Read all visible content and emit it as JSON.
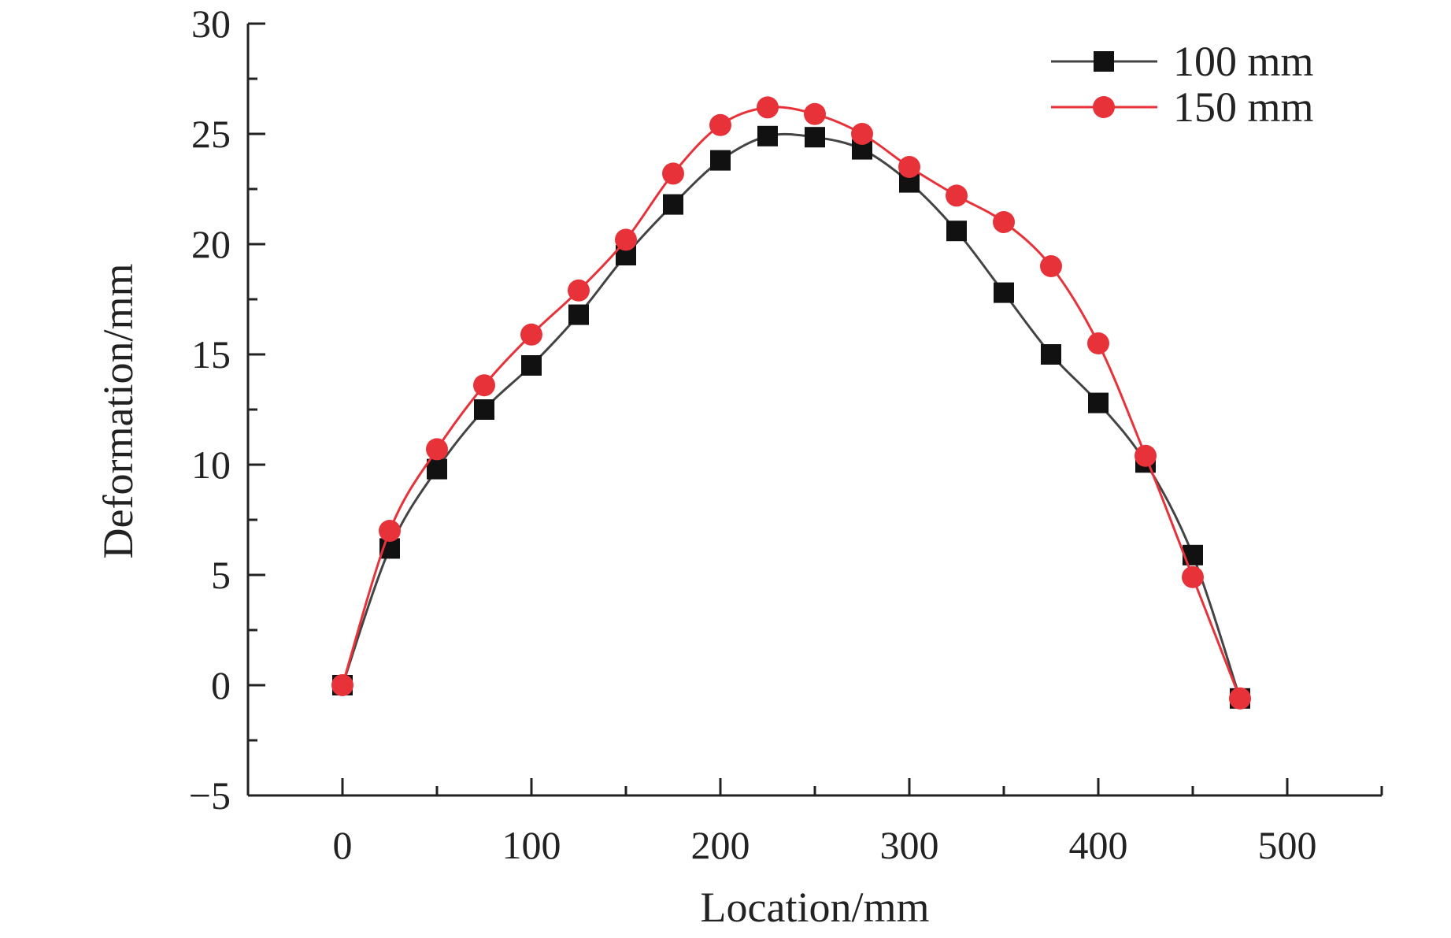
{
  "chart_data": {
    "type": "line",
    "title": "",
    "xlabel": "Location/mm",
    "ylabel": "Deformation/mm",
    "xlim": [
      -50,
      550
    ],
    "ylim": [
      -5,
      30
    ],
    "xticks": [
      0,
      100,
      200,
      300,
      400,
      500
    ],
    "yticks": [
      -5,
      0,
      5,
      10,
      15,
      20,
      25,
      30
    ],
    "xtick_labels": [
      "0",
      "100",
      "200",
      "300",
      "400",
      "500"
    ],
    "ytick_labels": [
      "−5",
      "0",
      "5",
      "10",
      "15",
      "20",
      "25",
      "30"
    ],
    "grid": false,
    "legend_position": "top-right",
    "series": [
      {
        "name": "100 mm",
        "marker": "square",
        "color": "#111111",
        "line_color": "#444444",
        "x": [
          0,
          25,
          50,
          75,
          100,
          125,
          150,
          175,
          200,
          225,
          250,
          275,
          300,
          325,
          350,
          375,
          400,
          425,
          450,
          475
        ],
        "y": [
          0,
          6.2,
          9.8,
          12.5,
          14.5,
          16.8,
          19.5,
          21.8,
          23.8,
          24.9,
          24.85,
          24.3,
          22.8,
          20.6,
          17.8,
          15.0,
          12.8,
          10.1,
          5.9,
          -0.6
        ]
      },
      {
        "name": "150 mm",
        "marker": "circle",
        "color": "#e8323a",
        "line_color": "#e8323a",
        "x": [
          0,
          25,
          50,
          75,
          100,
          125,
          150,
          175,
          200,
          225,
          250,
          275,
          300,
          325,
          350,
          375,
          400,
          425,
          450,
          475
        ],
        "y": [
          0,
          7.0,
          10.7,
          13.6,
          15.9,
          17.9,
          20.2,
          23.2,
          25.4,
          26.2,
          25.9,
          25.0,
          23.5,
          22.2,
          21.0,
          19.0,
          15.5,
          10.4,
          4.9,
          -0.6
        ]
      }
    ]
  }
}
